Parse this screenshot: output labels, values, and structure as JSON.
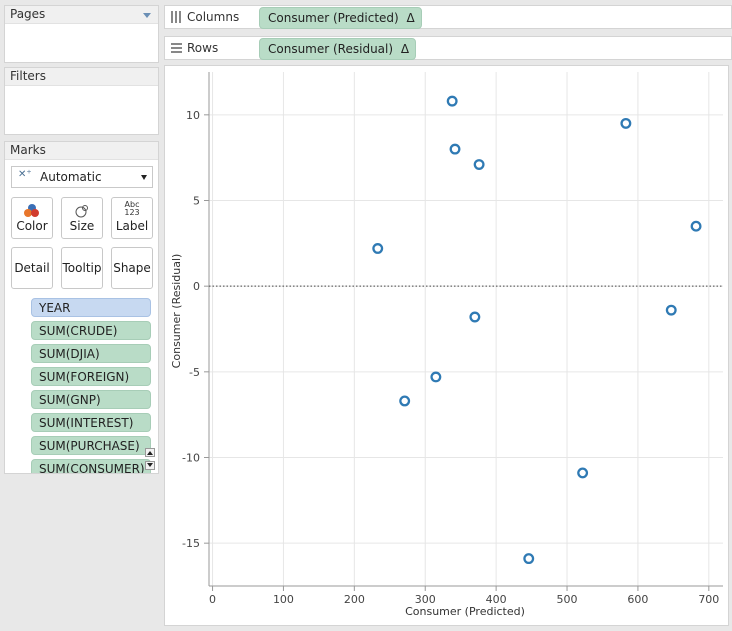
{
  "sidebar": {
    "pages_title": "Pages",
    "filters_title": "Filters",
    "marks_title": "Marks",
    "mark_type": "Automatic",
    "mark_buttons": {
      "color": "Color",
      "size": "Size",
      "label": "Label",
      "label_icon_text": "Abc\n123",
      "detail": "Detail",
      "tooltip": "Tooltip",
      "shape": "Shape"
    },
    "fields": [
      "YEAR",
      "SUM(CRUDE)",
      "SUM(DJIA)",
      "SUM(FOREIGN)",
      "SUM(GNP)",
      "SUM(INTEREST)",
      "SUM(PURCHASE)",
      "SUM(CONSUMER)"
    ]
  },
  "shelves": {
    "columns_label": "Columns",
    "columns_pill": "Consumer (Predicted)",
    "rows_label": "Rows",
    "rows_pill": "Consumer (Residual)",
    "delta_symbol": "Δ"
  },
  "colors": {
    "mark": "#2f7ab4",
    "pill_measure": "#b9dcc7",
    "pill_dimension": "#c7d9f1"
  },
  "chart_data": {
    "type": "scatter",
    "xlabel": "Consumer (Predicted)",
    "ylabel": "Consumer (Residual)",
    "xlim": [
      -5,
      720
    ],
    "ylim": [
      -17.5,
      12.5
    ],
    "xticks": [
      0,
      100,
      200,
      300,
      400,
      500,
      600,
      700
    ],
    "yticks": [
      10,
      5,
      0,
      -5,
      -10,
      -15
    ],
    "grid": true,
    "zero_line": "dotted",
    "points": [
      {
        "x": 338,
        "y": 10.8
      },
      {
        "x": 583,
        "y": 9.5
      },
      {
        "x": 342,
        "y": 8.0
      },
      {
        "x": 376,
        "y": 7.1
      },
      {
        "x": 682,
        "y": 3.5
      },
      {
        "x": 233,
        "y": 2.2
      },
      {
        "x": 647,
        "y": -1.4
      },
      {
        "x": 370,
        "y": -1.8
      },
      {
        "x": 315,
        "y": -5.3
      },
      {
        "x": 271,
        "y": -6.7
      },
      {
        "x": 522,
        "y": -10.9
      },
      {
        "x": 446,
        "y": -15.9
      }
    ]
  }
}
